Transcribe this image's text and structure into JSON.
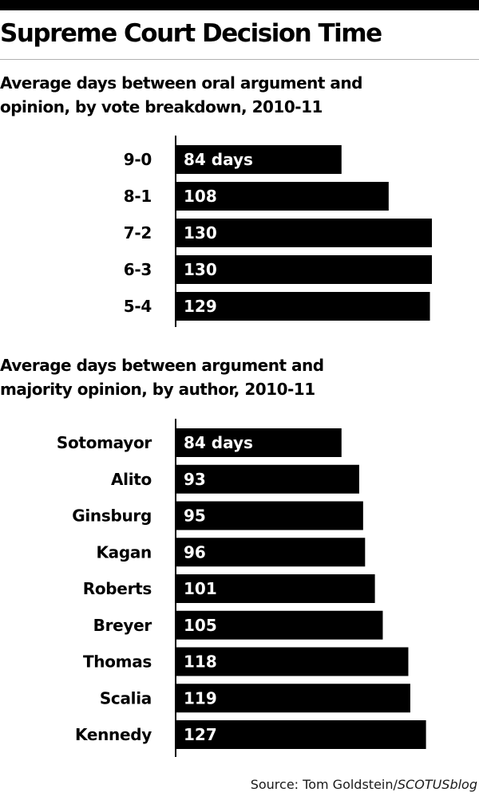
{
  "title": "Supreme Court Decision Time",
  "source": {
    "prefix": "Source: Tom Goldstein/",
    "italic": "SCOTUSblog"
  },
  "colors": {
    "bar": "#000000",
    "bar_text": "#ffffff",
    "label": "#000000"
  },
  "chart_data": [
    {
      "type": "bar",
      "orientation": "horizontal",
      "title": "Average days between oral argument and opinion, by vote breakdown, 2010-11",
      "categories": [
        "9-0",
        "8-1",
        "7-2",
        "6-3",
        "5-4"
      ],
      "values": [
        84,
        108,
        130,
        130,
        129
      ],
      "data_labels": [
        "84 days",
        "108",
        "130",
        "130",
        "129"
      ],
      "xlim": [
        0,
        130
      ],
      "grid": false
    },
    {
      "type": "bar",
      "orientation": "horizontal",
      "title": "Average days between argument and majority opinion, by author, 2010-11",
      "categories": [
        "Sotomayor",
        "Alito",
        "Ginsburg",
        "Kagan",
        "Roberts",
        "Breyer",
        "Thomas",
        "Scalia",
        "Kennedy"
      ],
      "values": [
        84,
        93,
        95,
        96,
        101,
        105,
        118,
        119,
        127
      ],
      "data_labels": [
        "84 days",
        "93",
        "95",
        "96",
        "101",
        "105",
        "118",
        "119",
        "127"
      ],
      "xlim": [
        0,
        130
      ],
      "grid": false
    }
  ]
}
